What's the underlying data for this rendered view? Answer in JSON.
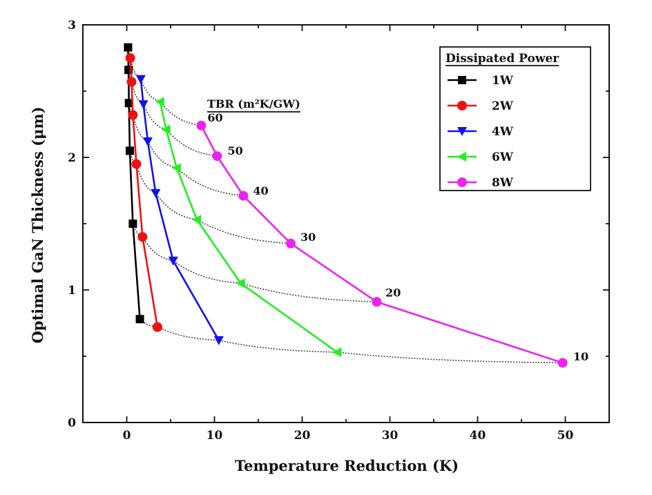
{
  "chart_data": {
    "type": "line",
    "title": "",
    "xlabel": "Temperature Reduction (K)",
    "ylabel": "Optimal GaN Thickness (μm)",
    "xlim": [
      -5,
      55
    ],
    "ylim": [
      0,
      3
    ],
    "xticks": [
      0,
      10,
      20,
      30,
      40,
      50
    ],
    "yticks": [
      0,
      1,
      2,
      3
    ],
    "legend_title": "Dissipated Power",
    "legend_position": "top-right",
    "series": [
      {
        "name": "1W",
        "color": "#000000",
        "marker": "square",
        "x": [
          0.15,
          0.2,
          0.25,
          0.35,
          0.7,
          1.5
        ],
        "y": [
          2.83,
          2.66,
          2.41,
          2.05,
          1.5,
          0.78
        ]
      },
      {
        "name": "2W",
        "color": "#ee1111",
        "marker": "circle",
        "x": [
          0.4,
          0.55,
          0.7,
          1.1,
          1.8,
          3.5
        ],
        "y": [
          2.75,
          2.57,
          2.32,
          1.95,
          1.4,
          0.72
        ]
      },
      {
        "name": "4W",
        "color": "#1111ee",
        "marker": "triangle-down",
        "x": [
          1.6,
          1.9,
          2.4,
          3.3,
          5.3,
          10.5
        ],
        "y": [
          2.59,
          2.4,
          2.12,
          1.73,
          1.22,
          0.62
        ]
      },
      {
        "name": "6W",
        "color": "#22ee22",
        "marker": "triangle-left",
        "x": [
          3.8,
          4.5,
          5.7,
          8.0,
          13.0,
          24.0
        ],
        "y": [
          2.42,
          2.21,
          1.92,
          1.53,
          1.05,
          0.53
        ]
      },
      {
        "name": "8W",
        "color": "#ee22ee",
        "marker": "circle",
        "x": [
          8.5,
          10.3,
          13.3,
          18.7,
          28.5,
          49.7
        ],
        "y": [
          2.24,
          2.01,
          1.71,
          1.35,
          0.91,
          0.45
        ]
      }
    ],
    "tbr_title": "TBR (m²K/GW)",
    "tbr_values": [
      "60",
      "50",
      "40",
      "30",
      "20",
      "10"
    ],
    "tbr_label_points": [
      {
        "label": "60",
        "x": 9.2,
        "y": 2.27
      },
      {
        "label": "50",
        "x": 11.5,
        "y": 2.02
      },
      {
        "label": "40",
        "x": 14.4,
        "y": 1.72
      },
      {
        "label": "30",
        "x": 19.8,
        "y": 1.37
      },
      {
        "label": "20",
        "x": 29.5,
        "y": 0.95
      },
      {
        "label": "10",
        "x": 50.9,
        "y": 0.47
      }
    ]
  }
}
